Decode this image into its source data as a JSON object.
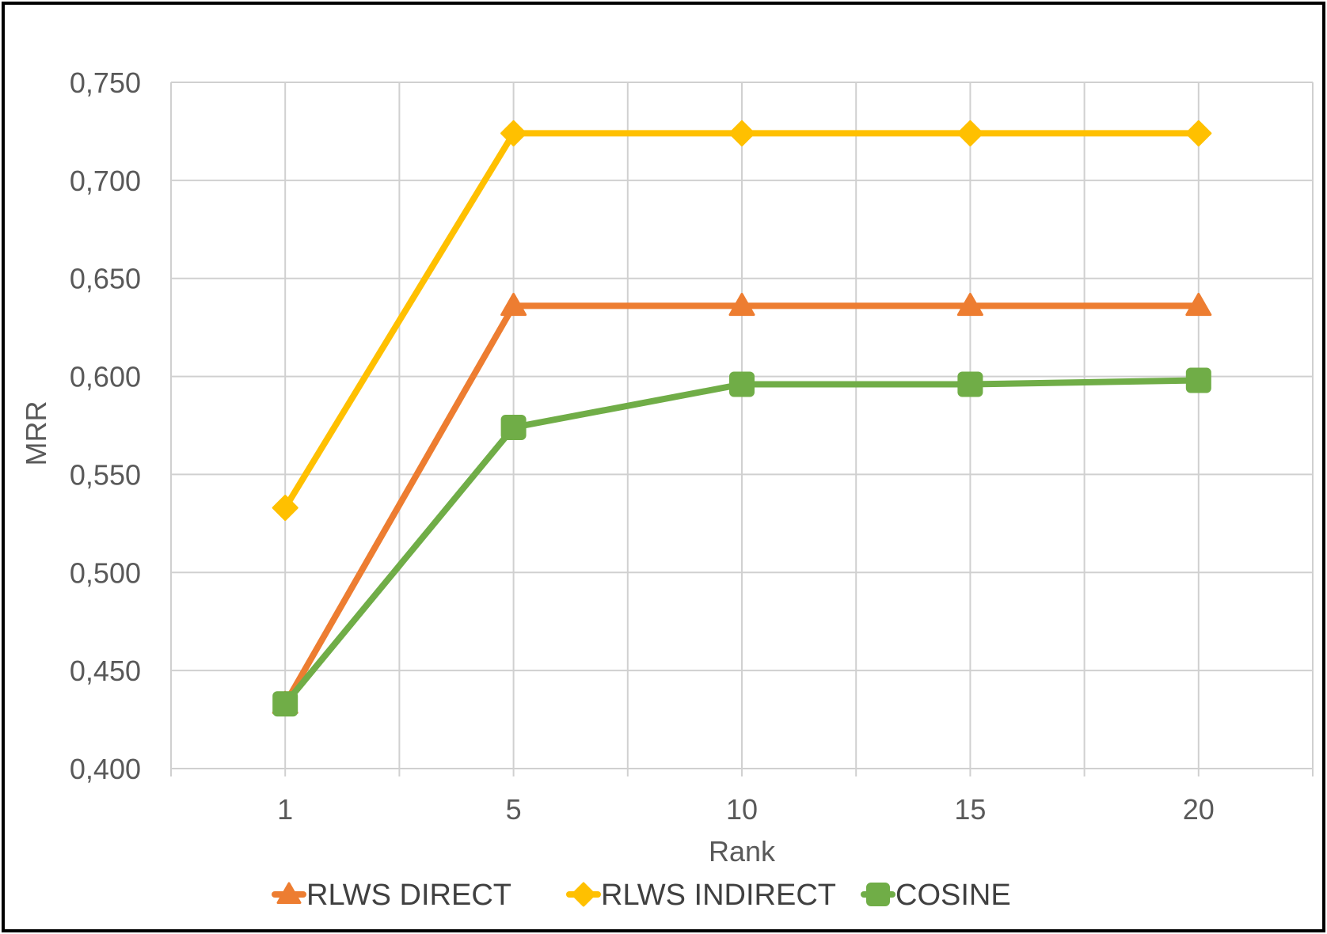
{
  "chart_data": {
    "type": "line",
    "title": "",
    "xlabel": "Rank",
    "ylabel": "MRR",
    "categories": [
      "1",
      "5",
      "10",
      "15",
      "20"
    ],
    "ylim": [
      0.4,
      0.75
    ],
    "ytick_step": 0.05,
    "ytick_labels": [
      "0,400",
      "0,450",
      "0,500",
      "0,550",
      "0,600",
      "0,650",
      "0,700",
      "0,750"
    ],
    "grid": true,
    "legend_position": "bottom",
    "series": [
      {
        "name": "RLWS DIRECT",
        "color": "#ED7D31",
        "marker": "triangle",
        "values": [
          0.433,
          0.636,
          0.636,
          0.636,
          0.636
        ]
      },
      {
        "name": "RLWS INDIRECT",
        "color": "#FFC000",
        "marker": "diamond",
        "values": [
          0.533,
          0.724,
          0.724,
          0.724,
          0.724
        ]
      },
      {
        "name": "COSINE",
        "color": "#70AD47",
        "marker": "square",
        "values": [
          0.433,
          0.574,
          0.596,
          0.596,
          0.598
        ]
      }
    ]
  }
}
